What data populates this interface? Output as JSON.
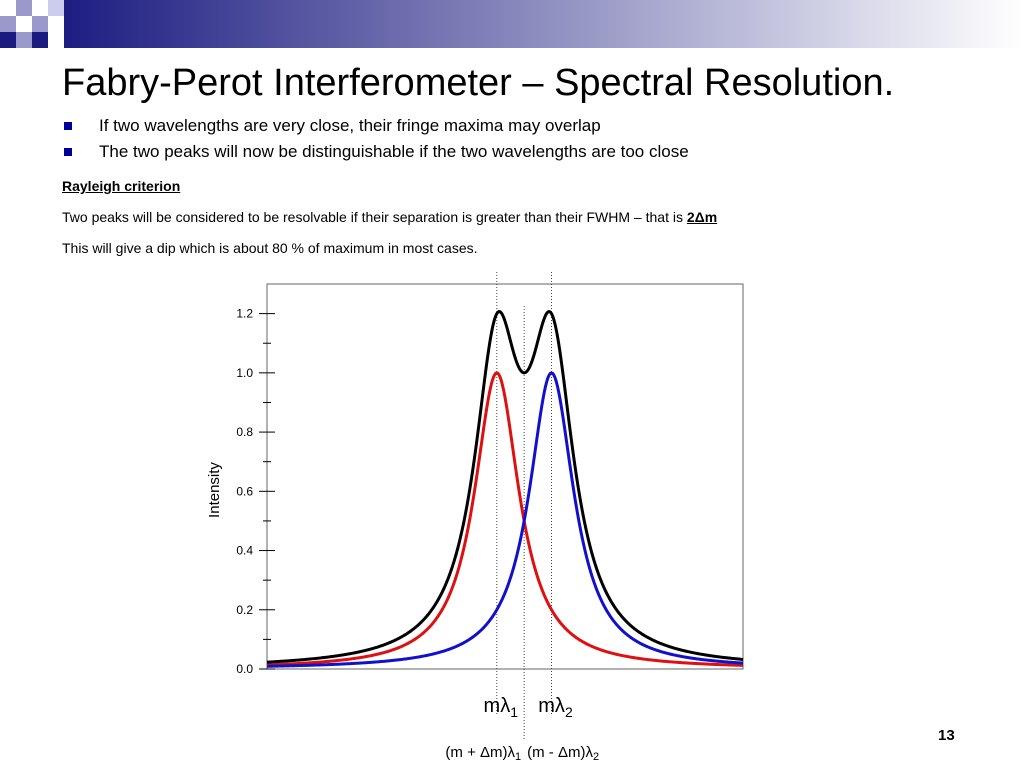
{
  "slide": {
    "title": "Fabry-Perot Interferometer – Spectral Resolution.",
    "bullets": [
      "If two wavelengths are very close, their fringe maxima may overlap",
      "The two peaks will now be distinguishable if the two wavelengths are too close"
    ],
    "rayleigh_heading": "Rayleigh criterion",
    "paragraph1": "Two peaks will be considered to be resolvable if their separation is greater than their FWHM – that is ",
    "paragraph1_emphasis": "2Δm",
    "paragraph2": "This will give a dip which is about 80 % of maximum in most cases.",
    "page_number": "13",
    "banner_colors": {
      "dark": "#1a1a80",
      "light": "#ffffff",
      "squares": "#9999cc"
    }
  },
  "chart_data": {
    "type": "line",
    "ylabel": "Intensity",
    "xlabel": "",
    "ylim": [
      0,
      1.3
    ],
    "xlim": [
      -2.35,
      2.0
    ],
    "yticks": [
      0.0,
      0.2,
      0.4,
      0.6,
      0.8,
      1.0,
      1.2
    ],
    "ytick_labels": [
      "0.0",
      "0.2",
      "0.4",
      "0.6",
      "0.8",
      "1.0",
      "1.2"
    ],
    "grid": false,
    "series": [
      {
        "peak_x": -0.25,
        "width": 0.25,
        "color": "#dd1111"
      },
      {
        "peak_x": 0.25,
        "width": 0.25,
        "color": "#1111cc"
      },
      {
        "sum_of_series": true,
        "color": "#000000"
      }
    ],
    "markers": [
      {
        "x": -0.25,
        "label_main": "mλ",
        "label_sub": "1"
      },
      {
        "x": 0.25,
        "label_main": "mλ",
        "label_sub": "2"
      }
    ],
    "center_marker_x": 0.0,
    "bottom_labels": [
      {
        "main": "(m + Δm)λ",
        "sub": "1"
      },
      {
        "main": "(m - Δm)λ",
        "sub": "2"
      }
    ]
  }
}
